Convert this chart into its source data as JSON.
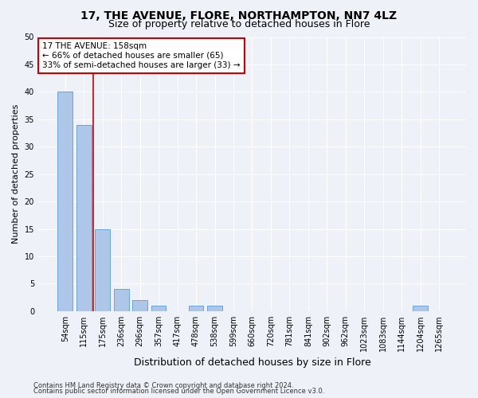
{
  "title1": "17, THE AVENUE, FLORE, NORTHAMPTON, NN7 4LZ",
  "title2": "Size of property relative to detached houses in Flore",
  "xlabel": "Distribution of detached houses by size in Flore",
  "ylabel": "Number of detached properties",
  "categories": [
    "54sqm",
    "115sqm",
    "175sqm",
    "236sqm",
    "296sqm",
    "357sqm",
    "417sqm",
    "478sqm",
    "538sqm",
    "599sqm",
    "660sqm",
    "720sqm",
    "781sqm",
    "841sqm",
    "902sqm",
    "962sqm",
    "1023sqm",
    "1083sqm",
    "1144sqm",
    "1204sqm",
    "1265sqm"
  ],
  "values": [
    40,
    34,
    15,
    4,
    2,
    1,
    0,
    1,
    1,
    0,
    0,
    0,
    0,
    0,
    0,
    0,
    0,
    0,
    0,
    1,
    0
  ],
  "bar_color": "#aec6e8",
  "bar_edge_color": "#5b9bd5",
  "vline_x": 1.5,
  "vline_color": "#cc0000",
  "annotation_text": "17 THE AVENUE: 158sqm\n← 66% of detached houses are smaller (65)\n33% of semi-detached houses are larger (33) →",
  "annotation_box_color": "#ffffff",
  "annotation_box_edge_color": "#cc0000",
  "ylim": [
    0,
    50
  ],
  "yticks": [
    0,
    5,
    10,
    15,
    20,
    25,
    30,
    35,
    40,
    45,
    50
  ],
  "footer1": "Contains HM Land Registry data © Crown copyright and database right 2024.",
  "footer2": "Contains public sector information licensed under the Open Government Licence v3.0.",
  "bg_color": "#eef2f8",
  "grid_color": "#ffffff",
  "title_fontsize": 10,
  "subtitle_fontsize": 9,
  "tick_fontsize": 7,
  "ylabel_fontsize": 8,
  "xlabel_fontsize": 9,
  "footer_fontsize": 6
}
